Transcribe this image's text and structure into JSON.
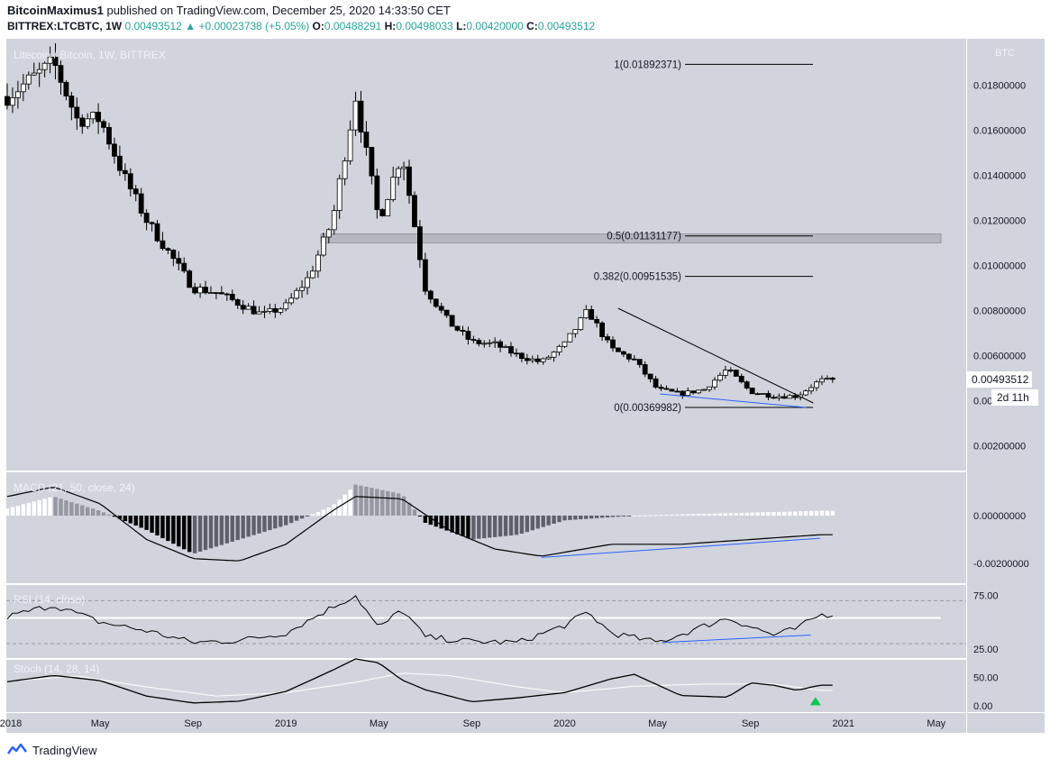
{
  "header": {
    "author": "BitcoinMaximus1",
    "published": "published on TradingView.com, December 25, 2020 14:33:50 CET",
    "symbol": "BITTREX:LTCBTC, 1W",
    "last": "0.00493512",
    "arrow": "▲",
    "change": "+0.00023738 (+5.05%)",
    "o_label": "O:",
    "o": "0.00488291",
    "h_label": "H:",
    "h": "0.00498033",
    "l_label": "L:",
    "l": "0.00420000",
    "c_label": "C:",
    "c": "0.00493512"
  },
  "footer": {
    "brand": "TradingView"
  },
  "colors": {
    "pane_bg": "#d1d4dc",
    "up": "#ffffff",
    "down": "#000000",
    "trend_blue": "#2962ff",
    "zone": "#b2b5be",
    "signal_green": "#00c853"
  },
  "chart_data": [
    {
      "type": "candlestick",
      "title": "Litecoin / Bitcoin, 1W, BITTREX",
      "unit": "BTC",
      "yticks": [
        "0.01800000",
        "0.01600000",
        "0.01400000",
        "0.01200000",
        "0.01000000",
        "0.00800000",
        "0.00600000",
        "0.00400000",
        "0.00200000"
      ],
      "ylim": [
        0.0008,
        0.0199
      ],
      "last_price_label": "0.00493512",
      "countdown": "2d 11h",
      "fib_levels": [
        {
          "label": "1(0.01892371)",
          "value": 0.01892371
        },
        {
          "label": "0.5(0.01131177)",
          "value": 0.01131177
        },
        {
          "label": "0.382(0.00951535)",
          "value": 0.00951535
        },
        {
          "label": "0(0.00369982)",
          "value": 0.00369982
        }
      ],
      "resistance_zone": [
        0.011,
        0.0114
      ],
      "descending_resistance": {
        "from": [
          "2020-02",
          0.0081
        ],
        "to": [
          "2020-12",
          0.0039
        ]
      },
      "support_line": {
        "from": [
          "2020-05",
          0.0043
        ],
        "to": [
          "2020-12",
          0.0037
        ]
      },
      "x_labels": [
        "2018",
        "May",
        "Sep",
        "2019",
        "May",
        "Sep",
        "2020",
        "May",
        "Sep",
        "2021",
        "May"
      ],
      "anchors": [
        [
          "2018-01",
          0.0175
        ],
        [
          "2018-03",
          0.019
        ],
        [
          "2018-04",
          0.0165
        ],
        [
          "2018-05",
          0.0165
        ],
        [
          "2018-06",
          0.014
        ],
        [
          "2018-07",
          0.012
        ],
        [
          "2018-08",
          0.0105
        ],
        [
          "2018-09",
          0.009
        ],
        [
          "2018-10",
          0.0088
        ],
        [
          "2018-11",
          0.0083
        ],
        [
          "2018-12",
          0.0078
        ],
        [
          "2019-01",
          0.0082
        ],
        [
          "2019-02",
          0.0095
        ],
        [
          "2019-03",
          0.012
        ],
        [
          "2019-04",
          0.0175
        ],
        [
          "2019-05",
          0.012
        ],
        [
          "2019-06",
          0.015
        ],
        [
          "2019-07",
          0.009
        ],
        [
          "2019-08",
          0.0075
        ],
        [
          "2019-09",
          0.0066
        ],
        [
          "2019-10",
          0.0065
        ],
        [
          "2019-11",
          0.006
        ],
        [
          "2019-12",
          0.0057
        ],
        [
          "2020-01",
          0.0065
        ],
        [
          "2020-02",
          0.008
        ],
        [
          "2020-03",
          0.0063
        ],
        [
          "2020-04",
          0.0058
        ],
        [
          "2020-05",
          0.0045
        ],
        [
          "2020-06",
          0.0043
        ],
        [
          "2020-07",
          0.0045
        ],
        [
          "2020-08",
          0.0054
        ],
        [
          "2020-09",
          0.0044
        ],
        [
          "2020-10",
          0.0042
        ],
        [
          "2020-11",
          0.0042
        ],
        [
          "2020-12",
          0.0049
        ]
      ]
    },
    {
      "type": "histogram",
      "title": "MACD (21, 50, close, 24)",
      "yticks": [
        "0.00000000",
        "-0.00200000"
      ],
      "macd_anchors": [
        [
          "2018-01",
          0.0008
        ],
        [
          "2018-03",
          0.0012
        ],
        [
          "2018-05",
          0.0005
        ],
        [
          "2018-07",
          -0.001
        ],
        [
          "2018-09",
          -0.0018
        ],
        [
          "2018-11",
          -0.0019
        ],
        [
          "2019-01",
          -0.0012
        ],
        [
          "2019-03",
          0.0002
        ],
        [
          "2019-04",
          0.0008
        ],
        [
          "2019-06",
          0.0007
        ],
        [
          "2019-08",
          -0.0006
        ],
        [
          "2019-10",
          -0.0014
        ],
        [
          "2019-12",
          -0.0017
        ],
        [
          "2020-03",
          -0.0012
        ],
        [
          "2020-06",
          -0.0012
        ],
        [
          "2020-09",
          -0.001
        ],
        [
          "2020-12",
          -0.0008
        ]
      ],
      "histogram_anchors": [
        [
          "2018-01",
          0.0003
        ],
        [
          "2018-03",
          0.0008
        ],
        [
          "2018-05",
          0.0002
        ],
        [
          "2018-07",
          -0.0006
        ],
        [
          "2018-09",
          -0.0016
        ],
        [
          "2018-11",
          -0.001
        ],
        [
          "2019-01",
          -0.0004
        ],
        [
          "2019-03",
          0.0004
        ],
        [
          "2019-04",
          0.0013
        ],
        [
          "2019-06",
          0.0009
        ],
        [
          "2019-07",
          -0.0003
        ],
        [
          "2019-09",
          -0.001
        ],
        [
          "2019-11",
          -0.0008
        ],
        [
          "2020-01",
          -0.0002
        ],
        [
          "2020-04",
          0.0
        ],
        [
          "2020-08",
          0.0001
        ],
        [
          "2020-12",
          0.0002
        ]
      ],
      "bullish_divergence_line": {
        "from": [
          "2019-12",
          -0.00175
        ],
        "to": [
          "2020-12",
          -0.00095
        ]
      }
    },
    {
      "type": "line",
      "title": "RSI (14, close)",
      "yticks": [
        "75.00",
        "25.00"
      ],
      "levels": [
        70,
        30
      ],
      "threshold_line": 54,
      "anchors": [
        [
          "2018-01",
          55
        ],
        [
          "2018-03",
          66
        ],
        [
          "2018-05",
          50
        ],
        [
          "2018-07",
          42
        ],
        [
          "2018-09",
          31
        ],
        [
          "2018-11",
          33
        ],
        [
          "2019-01",
          40
        ],
        [
          "2019-03",
          64
        ],
        [
          "2019-04",
          75
        ],
        [
          "2019-05",
          44
        ],
        [
          "2019-06",
          62
        ],
        [
          "2019-07",
          36
        ],
        [
          "2019-09",
          32
        ],
        [
          "2019-11",
          31
        ],
        [
          "2020-01",
          47
        ],
        [
          "2020-02",
          59
        ],
        [
          "2020-03",
          40
        ],
        [
          "2020-05",
          31
        ],
        [
          "2020-08",
          54
        ],
        [
          "2020-10",
          38
        ],
        [
          "2020-11",
          44
        ],
        [
          "2020-12",
          57
        ]
      ],
      "support_line": {
        "from": [
          "2020-05",
          31
        ],
        "to": [
          "2020-11",
          38
        ]
      }
    },
    {
      "type": "line",
      "title": "Stoch (14, 28, 14)",
      "yticks": [
        "50.00",
        "0.00"
      ],
      "k_anchors": [
        [
          "2018-01",
          42
        ],
        [
          "2018-03",
          53
        ],
        [
          "2018-05",
          44
        ],
        [
          "2018-07",
          17
        ],
        [
          "2018-09",
          5
        ],
        [
          "2018-11",
          8
        ],
        [
          "2019-01",
          25
        ],
        [
          "2019-03",
          62
        ],
        [
          "2019-04",
          82
        ],
        [
          "2019-05",
          75
        ],
        [
          "2019-06",
          45
        ],
        [
          "2019-07",
          28
        ],
        [
          "2019-09",
          7
        ],
        [
          "2019-11",
          14
        ],
        [
          "2020-01",
          23
        ],
        [
          "2020-03",
          47
        ],
        [
          "2020-04",
          55
        ],
        [
          "2020-06",
          18
        ],
        [
          "2020-08",
          15
        ],
        [
          "2020-09",
          40
        ],
        [
          "2020-10",
          36
        ],
        [
          "2020-11",
          27
        ],
        [
          "2020-12",
          36
        ]
      ],
      "d_anchors": [
        [
          "2018-01",
          43
        ],
        [
          "2018-04",
          52
        ],
        [
          "2018-07",
          33
        ],
        [
          "2018-10",
          17
        ],
        [
          "2019-01",
          23
        ],
        [
          "2019-04",
          41
        ],
        [
          "2019-06",
          57
        ],
        [
          "2019-08",
          53
        ],
        [
          "2019-11",
          33
        ],
        [
          "2020-01",
          23
        ],
        [
          "2020-04",
          34
        ],
        [
          "2020-07",
          38
        ],
        [
          "2020-10",
          38
        ],
        [
          "2020-12",
          27
        ]
      ],
      "signal": "bullish-cross"
    }
  ]
}
